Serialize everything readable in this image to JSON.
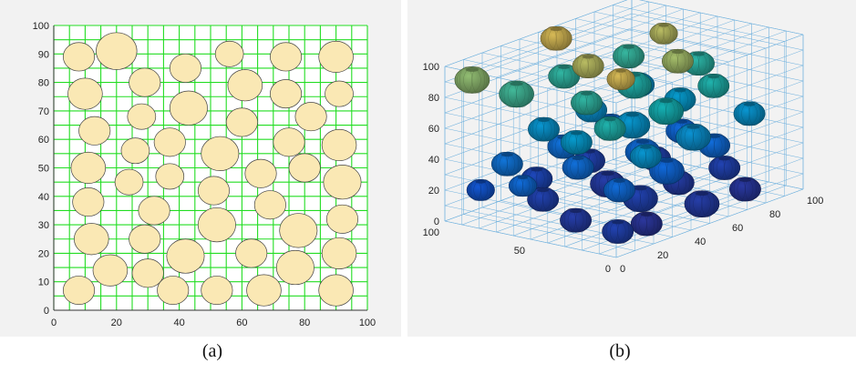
{
  "chart_data": [
    {
      "type": "scatter",
      "subtype": "2d-circle-packing",
      "caption": "(a)",
      "xlim": [
        0,
        100
      ],
      "ylim": [
        0,
        100
      ],
      "xticks": [
        "0",
        "20",
        "40",
        "60",
        "80",
        "100"
      ],
      "yticks": [
        "0",
        "10",
        "20",
        "30",
        "40",
        "50",
        "60",
        "70",
        "80",
        "90",
        "100"
      ],
      "grid": true,
      "grid_spacing": 5,
      "grid_color": "#22dd22",
      "circle_fill": "#fae8b4",
      "circle_edge": "#444444",
      "circles": [
        {
          "x": 8,
          "y": 89,
          "r": 5
        },
        {
          "x": 20,
          "y": 91,
          "r": 6.5
        },
        {
          "x": 42,
          "y": 85,
          "r": 5
        },
        {
          "x": 56,
          "y": 90,
          "r": 4.5
        },
        {
          "x": 74,
          "y": 89,
          "r": 5
        },
        {
          "x": 90,
          "y": 89,
          "r": 5.5
        },
        {
          "x": 10,
          "y": 76,
          "r": 5.5
        },
        {
          "x": 29,
          "y": 80,
          "r": 5
        },
        {
          "x": 61,
          "y": 79,
          "r": 5.5
        },
        {
          "x": 74,
          "y": 76,
          "r": 5
        },
        {
          "x": 91,
          "y": 76,
          "r": 4.5
        },
        {
          "x": 28,
          "y": 68,
          "r": 4.5
        },
        {
          "x": 43,
          "y": 71,
          "r": 6
        },
        {
          "x": 13,
          "y": 63,
          "r": 5
        },
        {
          "x": 60,
          "y": 66,
          "r": 5
        },
        {
          "x": 82,
          "y": 68,
          "r": 5
        },
        {
          "x": 26,
          "y": 56,
          "r": 4.5
        },
        {
          "x": 37,
          "y": 59,
          "r": 5
        },
        {
          "x": 53,
          "y": 55,
          "r": 6
        },
        {
          "x": 75,
          "y": 59,
          "r": 5
        },
        {
          "x": 91,
          "y": 58,
          "r": 5.5
        },
        {
          "x": 11,
          "y": 50,
          "r": 5.5
        },
        {
          "x": 24,
          "y": 45,
          "r": 4.5
        },
        {
          "x": 37,
          "y": 47,
          "r": 4.5
        },
        {
          "x": 66,
          "y": 48,
          "r": 5
        },
        {
          "x": 80,
          "y": 50,
          "r": 5
        },
        {
          "x": 11,
          "y": 38,
          "r": 5
        },
        {
          "x": 51,
          "y": 42,
          "r": 5
        },
        {
          "x": 92,
          "y": 45,
          "r": 6
        },
        {
          "x": 32,
          "y": 35,
          "r": 5
        },
        {
          "x": 69,
          "y": 37,
          "r": 5
        },
        {
          "x": 52,
          "y": 30,
          "r": 6
        },
        {
          "x": 78,
          "y": 28,
          "r": 6
        },
        {
          "x": 92,
          "y": 32,
          "r": 5
        },
        {
          "x": 12,
          "y": 25,
          "r": 5.5
        },
        {
          "x": 29,
          "y": 25,
          "r": 5
        },
        {
          "x": 42,
          "y": 19,
          "r": 6
        },
        {
          "x": 63,
          "y": 20,
          "r": 5
        },
        {
          "x": 77,
          "y": 15,
          "r": 6
        },
        {
          "x": 91,
          "y": 20,
          "r": 5.5
        },
        {
          "x": 18,
          "y": 14,
          "r": 5.5
        },
        {
          "x": 30,
          "y": 13,
          "r": 5
        },
        {
          "x": 8,
          "y": 7,
          "r": 5
        },
        {
          "x": 38,
          "y": 7,
          "r": 5
        },
        {
          "x": 52,
          "y": 7,
          "r": 5
        },
        {
          "x": 67,
          "y": 7,
          "r": 5.5
        },
        {
          "x": 90,
          "y": 7,
          "r": 5.5
        }
      ]
    },
    {
      "type": "scatter",
      "subtype": "3d-particle-packing",
      "caption": "(b)",
      "zlim": [
        0,
        100
      ],
      "zticks": [
        "0",
        "20",
        "40",
        "60",
        "80",
        "100"
      ],
      "x_ticks_right": [
        "0",
        "20",
        "40",
        "60",
        "80",
        "100"
      ],
      "y_ticks_left": [
        "0",
        "50",
        "100"
      ],
      "grid": true,
      "grid_color": "#5aa6da",
      "colormap": "parula",
      "particles": [
        {
          "x": 10,
          "y": 10,
          "z": 10,
          "r": 9
        },
        {
          "x": 30,
          "y": 15,
          "z": 5,
          "r": 9
        },
        {
          "x": 55,
          "y": 10,
          "z": 8,
          "r": 10
        },
        {
          "x": 80,
          "y": 12,
          "z": 6,
          "r": 9
        },
        {
          "x": 15,
          "y": 40,
          "z": 8,
          "r": 9
        },
        {
          "x": 45,
          "y": 35,
          "z": 10,
          "r": 10
        },
        {
          "x": 70,
          "y": 40,
          "z": 8,
          "r": 9
        },
        {
          "x": 90,
          "y": 35,
          "z": 10,
          "r": 9
        },
        {
          "x": 25,
          "y": 70,
          "z": 10,
          "r": 9
        },
        {
          "x": 55,
          "y": 65,
          "z": 8,
          "r": 10
        },
        {
          "x": 85,
          "y": 70,
          "z": 10,
          "r": 9
        },
        {
          "x": 10,
          "y": 90,
          "z": 18,
          "r": 8
        },
        {
          "x": 40,
          "y": 90,
          "z": 12,
          "r": 9
        },
        {
          "x": 70,
          "y": 92,
          "z": 10,
          "r": 9
        },
        {
          "x": 20,
          "y": 20,
          "z": 30,
          "r": 9
        },
        {
          "x": 50,
          "y": 25,
          "z": 28,
          "r": 10
        },
        {
          "x": 80,
          "y": 30,
          "z": 30,
          "r": 9
        },
        {
          "x": 30,
          "y": 55,
          "z": 32,
          "r": 9
        },
        {
          "x": 60,
          "y": 50,
          "z": 30,
          "r": 10
        },
        {
          "x": 90,
          "y": 60,
          "z": 28,
          "r": 9
        },
        {
          "x": 15,
          "y": 80,
          "z": 35,
          "r": 9
        },
        {
          "x": 45,
          "y": 80,
          "z": 33,
          "r": 9
        },
        {
          "x": 75,
          "y": 85,
          "z": 32,
          "r": 9
        },
        {
          "x": 5,
          "y": 60,
          "z": 30,
          "r": 8
        },
        {
          "x": 25,
          "y": 10,
          "z": 52,
          "r": 9
        },
        {
          "x": 55,
          "y": 15,
          "z": 50,
          "r": 10
        },
        {
          "x": 85,
          "y": 15,
          "z": 52,
          "r": 9
        },
        {
          "x": 20,
          "y": 45,
          "z": 55,
          "r": 9
        },
        {
          "x": 50,
          "y": 45,
          "z": 53,
          "r": 10
        },
        {
          "x": 80,
          "y": 50,
          "z": 55,
          "r": 9
        },
        {
          "x": 30,
          "y": 75,
          "z": 52,
          "r": 9
        },
        {
          "x": 60,
          "y": 80,
          "z": 50,
          "r": 9
        },
        {
          "x": 90,
          "y": 85,
          "z": 52,
          "r": 9
        },
        {
          "x": 15,
          "y": 20,
          "z": 72,
          "r": 9
        },
        {
          "x": 45,
          "y": 20,
          "z": 70,
          "r": 10
        },
        {
          "x": 75,
          "y": 25,
          "z": 72,
          "r": 9
        },
        {
          "x": 30,
          "y": 50,
          "z": 75,
          "r": 9
        },
        {
          "x": 60,
          "y": 55,
          "z": 72,
          "r": 10
        },
        {
          "x": 90,
          "y": 50,
          "z": 74,
          "r": 9
        },
        {
          "x": 20,
          "y": 80,
          "z": 78,
          "r": 10
        },
        {
          "x": 50,
          "y": 85,
          "z": 75,
          "r": 9
        },
        {
          "x": 80,
          "y": 80,
          "z": 76,
          "r": 9
        },
        {
          "x": 10,
          "y": 95,
          "z": 88,
          "r": 10
        },
        {
          "x": 40,
          "y": 60,
          "z": 92,
          "r": 9
        },
        {
          "x": 65,
          "y": 35,
          "z": 90,
          "r": 9
        },
        {
          "x": 85,
          "y": 65,
          "z": 92,
          "r": 8
        },
        {
          "x": 55,
          "y": 95,
          "z": 95,
          "r": 9
        },
        {
          "x": 30,
          "y": 30,
          "z": 95,
          "r": 8
        }
      ]
    }
  ]
}
